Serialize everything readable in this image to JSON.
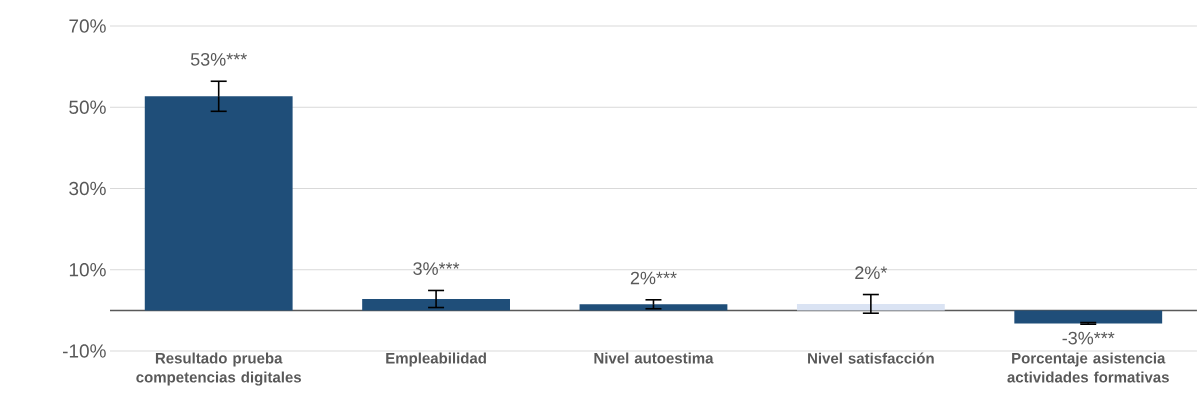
{
  "chart_data": {
    "type": "bar",
    "categories": [
      "Resultado prueba competencias digitales",
      "Empleabilidad",
      "Nivel autoestima",
      "Nivel satisfacción",
      "Porcentaje asistencia actividades formativas"
    ],
    "values": [
      52.7,
      2.8,
      1.5,
      1.6,
      -3.2
    ],
    "colors": [
      "#1f4e79",
      "#1f4e79",
      "#1f4e79",
      "#dae3f3",
      "#1f4e79"
    ],
    "errors": [
      3.7,
      2.1,
      1.1,
      2.3,
      0.2
    ],
    "value_labels": [
      "53%***",
      "3%***",
      "2%***",
      "2%*",
      "-3%***"
    ],
    "ylim": [
      -10,
      70
    ],
    "yticks": [
      {
        "value": -10,
        "label": "-10%"
      },
      {
        "value": 10,
        "label": "10%"
      },
      {
        "value": 30,
        "label": "30%"
      },
      {
        "value": 50,
        "label": "50%"
      },
      {
        "value": 70,
        "label": "70%"
      }
    ],
    "grid": "y"
  }
}
